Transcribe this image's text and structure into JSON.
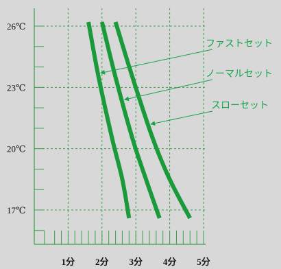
{
  "chart_data": {
    "type": "line",
    "title": "",
    "xlabel": "",
    "ylabel": "",
    "x_ticks": [
      "1分",
      "2分",
      "3分",
      "4分",
      "5分"
    ],
    "y_ticks": [
      "17℃",
      "20℃",
      "23℃",
      "26℃"
    ],
    "xlim": [
      0,
      5.5
    ],
    "ylim": [
      15.5,
      27
    ],
    "grid": true,
    "series": [
      {
        "name": "ファストセット",
        "x": [
          1.6,
          1.9,
          2.3,
          2.6,
          2.8
        ],
        "y": [
          26.2,
          23.5,
          20.5,
          18.5,
          16.6
        ]
      },
      {
        "name": "ノーマルセット",
        "x": [
          2.0,
          2.4,
          2.9,
          3.3,
          3.7
        ],
        "y": [
          26.2,
          23.5,
          20.5,
          18.5,
          16.6
        ]
      },
      {
        "name": "スローセット",
        "x": [
          2.4,
          2.9,
          3.5,
          4.0,
          4.6
        ],
        "y": [
          26.2,
          23.5,
          20.5,
          18.5,
          16.6
        ]
      }
    ],
    "annotations": [
      {
        "text": "ファストセット",
        "series": 0,
        "at_y": 23.7
      },
      {
        "text": "ノーマルセット",
        "series": 1,
        "at_y": 22.4
      },
      {
        "text": "スローセット",
        "series": 2,
        "at_y": 21.2
      }
    ],
    "colors": {
      "line": "#1a9a3a",
      "grid": "#3ca04a",
      "background": "#d8d8d8",
      "annotation": "#16a34a"
    }
  }
}
